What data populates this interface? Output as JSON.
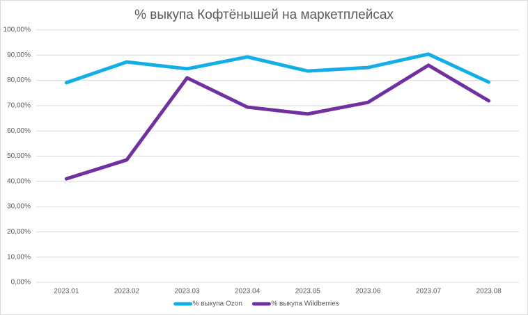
{
  "chart_data": {
    "type": "line",
    "title": "% выкупа Кофтёнышей на маркетплейсах",
    "categories": [
      "2023.01",
      "2023.02",
      "2023.03",
      "2023.04",
      "2023.05",
      "2023.06",
      "2023.07",
      "2023.08"
    ],
    "series": [
      {
        "name": "% выкупа Ozon",
        "color": "#14aee6",
        "values": [
          79.1,
          87.3,
          84.6,
          89.3,
          83.7,
          85.1,
          90.4,
          79.3
        ]
      },
      {
        "name": "% выкупа Wildberries",
        "color": "#7030a0",
        "values": [
          41.0,
          48.5,
          81.0,
          69.4,
          66.7,
          71.3,
          86.0,
          71.9
        ]
      }
    ],
    "ylim": [
      0,
      100
    ],
    "yticks": [
      {
        "value": 0,
        "label": "0,00%"
      },
      {
        "value": 10,
        "label": "10,00%"
      },
      {
        "value": 20,
        "label": "20,00%"
      },
      {
        "value": 30,
        "label": "30,00%"
      },
      {
        "value": 40,
        "label": "40,00%"
      },
      {
        "value": 50,
        "label": "50,00%"
      },
      {
        "value": 60,
        "label": "60,00%"
      },
      {
        "value": 70,
        "label": "70,00%"
      },
      {
        "value": 80,
        "label": "80,00%"
      },
      {
        "value": 90,
        "label": "90,00%"
      },
      {
        "value": 100,
        "label": "100,00%"
      }
    ],
    "grid": true,
    "legend": "bottom"
  }
}
